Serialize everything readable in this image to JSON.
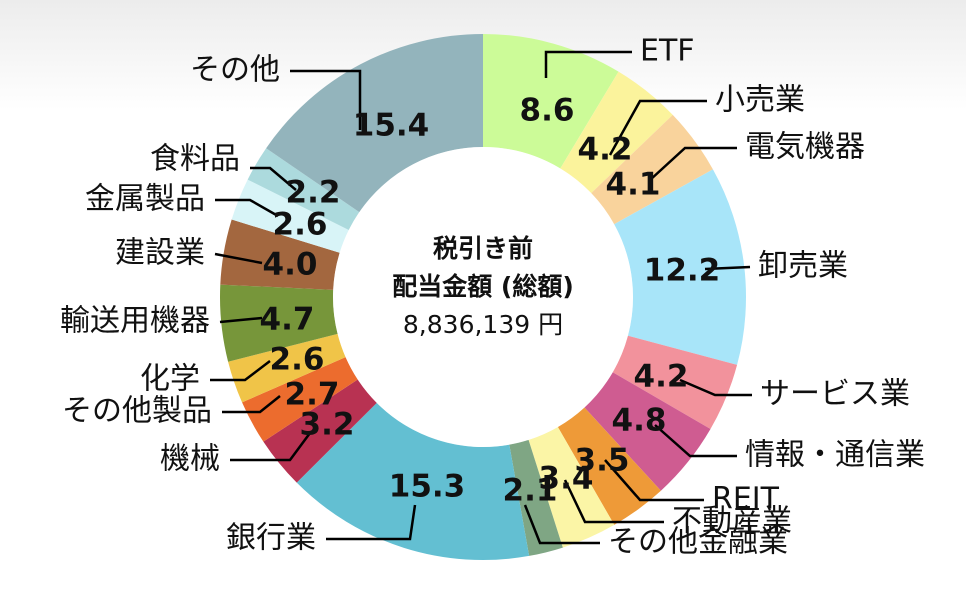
{
  "chart_data": {
    "type": "pie",
    "center": {
      "line1": "税引き前",
      "line2": "配当金額 (総額)",
      "total": "8,836,139 円"
    },
    "slices": [
      {
        "name": "ETF",
        "value": 8.6,
        "label": "8.6",
        "color": "#ccfb98"
      },
      {
        "name": "小売業",
        "value": 4.2,
        "label": "4.2",
        "color": "#fbf39c"
      },
      {
        "name": "電気機器",
        "value": 4.1,
        "label": "4.1",
        "color": "#f9d39c"
      },
      {
        "name": "卸売業",
        "value": 12.2,
        "label": "12.2",
        "color": "#a8e5f9"
      },
      {
        "name": "サービス業",
        "value": 4.2,
        "label": "4.2",
        "color": "#f2929c"
      },
      {
        "name": "情報・通信業",
        "value": 4.8,
        "label": "4.8",
        "color": "#cf5c91"
      },
      {
        "name": "REIT",
        "value": 3.5,
        "label": "3.5",
        "color": "#ee9a38"
      },
      {
        "name": "不動産業",
        "value": 3.4,
        "label": "3.4",
        "color": "#fbf5a6"
      },
      {
        "name": "その他金融業",
        "value": 2.1,
        "label": "2.1",
        "color": "#7fa684"
      },
      {
        "name": "銀行業",
        "value": 15.3,
        "label": "15.3",
        "color": "#63bfd2"
      },
      {
        "name": "機械",
        "value": 3.2,
        "label": "3.2",
        "color": "#b83252"
      },
      {
        "name": "その他製品",
        "value": 2.7,
        "label": "2.7",
        "color": "#ec6c2e"
      },
      {
        "name": "化学",
        "value": 2.6,
        "label": "2.6",
        "color": "#f0c448"
      },
      {
        "name": "輸送用機器",
        "value": 4.7,
        "label": "4.7",
        "color": "#77963a"
      },
      {
        "name": "建設業",
        "value": 4.0,
        "label": "4.0",
        "color": "#a3673f"
      },
      {
        "name": "金属製品",
        "value": 2.6,
        "label": "2.6",
        "color": "#d8f4f7"
      },
      {
        "name": "食料品",
        "value": 2.2,
        "label": "2.2",
        "color": "#acdadd"
      },
      {
        "name": "その他",
        "value": 15.4,
        "label": "15.4",
        "color": "#93b4bc"
      }
    ]
  }
}
